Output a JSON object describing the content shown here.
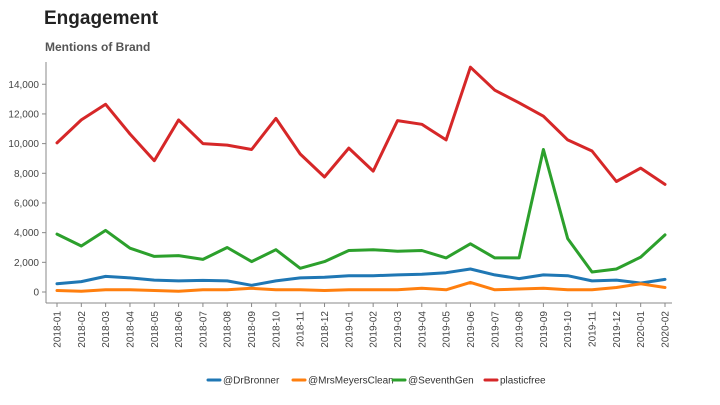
{
  "header": {
    "title": "Engagement",
    "subtitle": "Mentions of Brand"
  },
  "chart_data": {
    "type": "line",
    "title": "Engagement",
    "subtitle": "Mentions of Brand",
    "xlabel": "",
    "ylabel": "",
    "ylim": [
      0,
      15500
    ],
    "yticks": [
      0,
      2000,
      4000,
      6000,
      8000,
      10000,
      12000,
      14000
    ],
    "ytick_labels": [
      "0",
      "2,000",
      "4,000",
      "6,000",
      "8,000",
      "10,000",
      "12,000",
      "14,000"
    ],
    "grid": false,
    "legend_position": "bottom",
    "categories": [
      "2018-01",
      "2018-02",
      "2018-03",
      "2018-04",
      "2018-05",
      "2018-06",
      "2018-07",
      "2018-08",
      "2018-09",
      "2018-10",
      "2018-11",
      "2018-12",
      "2019-01",
      "2019-02",
      "2019-03",
      "2019-04",
      "2019-05",
      "2019-06",
      "2019-07",
      "2019-08",
      "2019-09",
      "2019-10",
      "2019-11",
      "2019-12",
      "2020-01",
      "2020-02"
    ],
    "series": [
      {
        "name": "@DrBronner",
        "color": "#1f77b4",
        "values": [
          550,
          700,
          1050,
          950,
          800,
          750,
          780,
          750,
          450,
          750,
          950,
          1000,
          1100,
          1100,
          1150,
          1200,
          1300,
          1550,
          1150,
          900,
          1150,
          1100,
          750,
          800,
          600,
          850
        ]
      },
      {
        "name": "@MrsMeyersClean",
        "color": "#ff7f0e",
        "values": [
          100,
          50,
          150,
          150,
          100,
          50,
          150,
          150,
          250,
          150,
          150,
          100,
          150,
          150,
          150,
          250,
          150,
          650,
          150,
          200,
          250,
          150,
          150,
          300,
          550,
          300
        ]
      },
      {
        "name": "@SeventhGen",
        "color": "#2ca02c",
        "values": [
          3900,
          3100,
          4150,
          2950,
          2400,
          2450,
          2200,
          3000,
          2050,
          2850,
          1600,
          2050,
          2800,
          2850,
          2750,
          2800,
          2300,
          3250,
          2300,
          2300,
          9600,
          3600,
          1350,
          1550,
          2350,
          3850
        ]
      },
      {
        "name": "plasticfree",
        "color": "#d62728",
        "values": [
          10050,
          11600,
          12650,
          10650,
          8850,
          11600,
          10000,
          9900,
          9600,
          11700,
          9300,
          7750,
          9700,
          8150,
          11550,
          11300,
          10250,
          15150,
          13600,
          12750,
          11850,
          10250,
          9500,
          7450,
          8350,
          7250
        ]
      }
    ]
  }
}
